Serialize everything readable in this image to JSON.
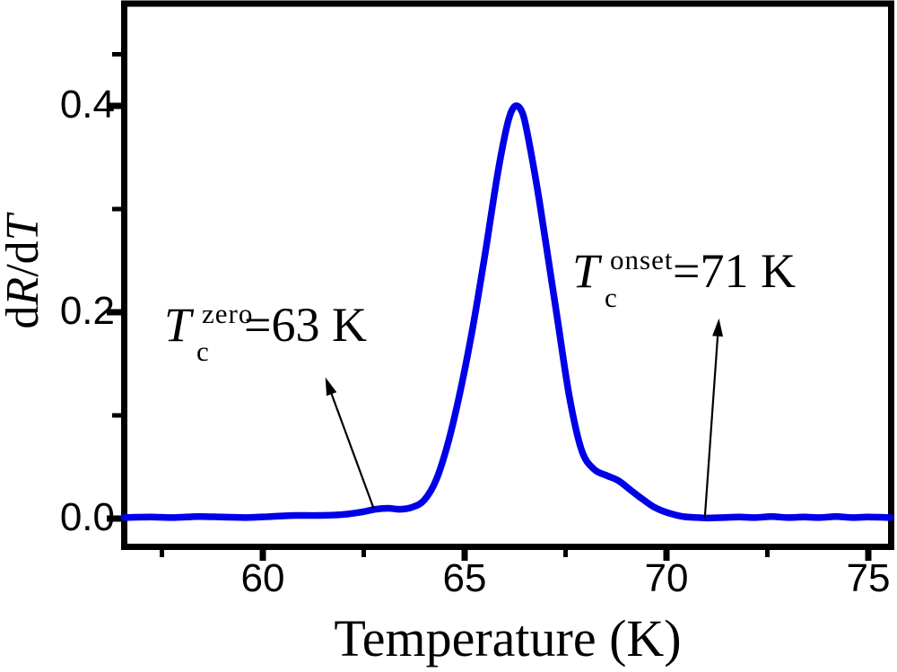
{
  "chart_data": {
    "type": "line",
    "title": "",
    "xlabel": "Temperature (K)",
    "ylabel_plain": "dR/dT",
    "ylabel_parts": [
      {
        "text": "d",
        "italic": false
      },
      {
        "text": "R",
        "italic": true
      },
      {
        "text": "/d",
        "italic": false
      },
      {
        "text": "T",
        "italic": true
      }
    ],
    "grid": false,
    "legend": null,
    "x_axis": {
      "range": [
        56.55,
        75.55
      ],
      "major_ticks": [
        {
          "value": 60,
          "label": "60"
        },
        {
          "value": 65,
          "label": "65"
        },
        {
          "value": 70,
          "label": "70"
        },
        {
          "value": 75,
          "label": "75"
        }
      ],
      "minor_ticks": [
        57.5,
        62.5,
        67.5,
        72.5
      ]
    },
    "y_axis": {
      "range": [
        0,
        0.5
      ],
      "major_ticks": [
        {
          "value": 0.0,
          "label": "0.0"
        },
        {
          "value": 0.2,
          "label": "0.2"
        },
        {
          "value": 0.4,
          "label": "0.4"
        }
      ],
      "minor_ticks": [
        0.1,
        0.3,
        0.45
      ]
    },
    "series": [
      {
        "name": "dR/dT vs Temperature",
        "color": "#0000e8",
        "peak": {
          "T": 66.3,
          "value": 0.4
        },
        "points": [
          [
            56.56,
            0.001
          ],
          [
            57.2,
            0.0015
          ],
          [
            57.8,
            0.001
          ],
          [
            58.4,
            0.002
          ],
          [
            59.0,
            0.0015
          ],
          [
            59.6,
            0.001
          ],
          [
            60.2,
            0.002
          ],
          [
            60.8,
            0.003
          ],
          [
            61.4,
            0.003
          ],
          [
            62.0,
            0.004
          ],
          [
            62.4,
            0.006
          ],
          [
            62.8,
            0.009
          ],
          [
            63.1,
            0.01
          ],
          [
            63.4,
            0.009
          ],
          [
            63.7,
            0.011
          ],
          [
            64.0,
            0.018
          ],
          [
            64.3,
            0.038
          ],
          [
            64.6,
            0.075
          ],
          [
            64.9,
            0.125
          ],
          [
            65.2,
            0.185
          ],
          [
            65.5,
            0.255
          ],
          [
            65.8,
            0.33
          ],
          [
            66.0,
            0.372
          ],
          [
            66.15,
            0.394
          ],
          [
            66.3,
            0.4
          ],
          [
            66.45,
            0.391
          ],
          [
            66.6,
            0.364
          ],
          [
            66.8,
            0.32
          ],
          [
            67.0,
            0.27
          ],
          [
            67.3,
            0.193
          ],
          [
            67.6,
            0.117
          ],
          [
            67.9,
            0.066
          ],
          [
            68.2,
            0.048
          ],
          [
            68.5,
            0.042
          ],
          [
            68.8,
            0.037
          ],
          [
            69.1,
            0.028
          ],
          [
            69.4,
            0.019
          ],
          [
            69.7,
            0.011
          ],
          [
            70.0,
            0.006
          ],
          [
            70.4,
            0.002
          ],
          [
            70.8,
            0.001
          ],
          [
            71.0,
            0.0005
          ],
          [
            71.4,
            0.001
          ],
          [
            71.8,
            0.0015
          ],
          [
            72.2,
            0.001
          ],
          [
            72.6,
            0.002
          ],
          [
            73.0,
            0.001
          ],
          [
            73.4,
            0.0015
          ],
          [
            73.8,
            0.001
          ],
          [
            74.2,
            0.002
          ],
          [
            74.6,
            0.001
          ],
          [
            75.0,
            0.0015
          ],
          [
            75.55,
            0.001
          ]
        ]
      }
    ],
    "annotations": [
      {
        "id": "zero",
        "base": "T",
        "sub": "c",
        "sup": "zero",
        "tail": "=63 K",
        "full_text": "Tc zero = 63 K",
        "arrow": {
          "tail_at": [
            62.75,
            0.0095
          ],
          "head_at": [
            61.55,
            0.137
          ]
        }
      },
      {
        "id": "onset",
        "base": "T",
        "sub": "c",
        "sup": "onset",
        "tail": "=71 K",
        "full_text": "Tc onset = 71 K",
        "arrow": {
          "tail_at": [
            70.95,
            0.0005
          ],
          "head_at": [
            71.3,
            0.194
          ]
        }
      }
    ],
    "colors": {
      "curve": "#0000e8",
      "axes": "#000000",
      "background": "#ffffff"
    }
  }
}
